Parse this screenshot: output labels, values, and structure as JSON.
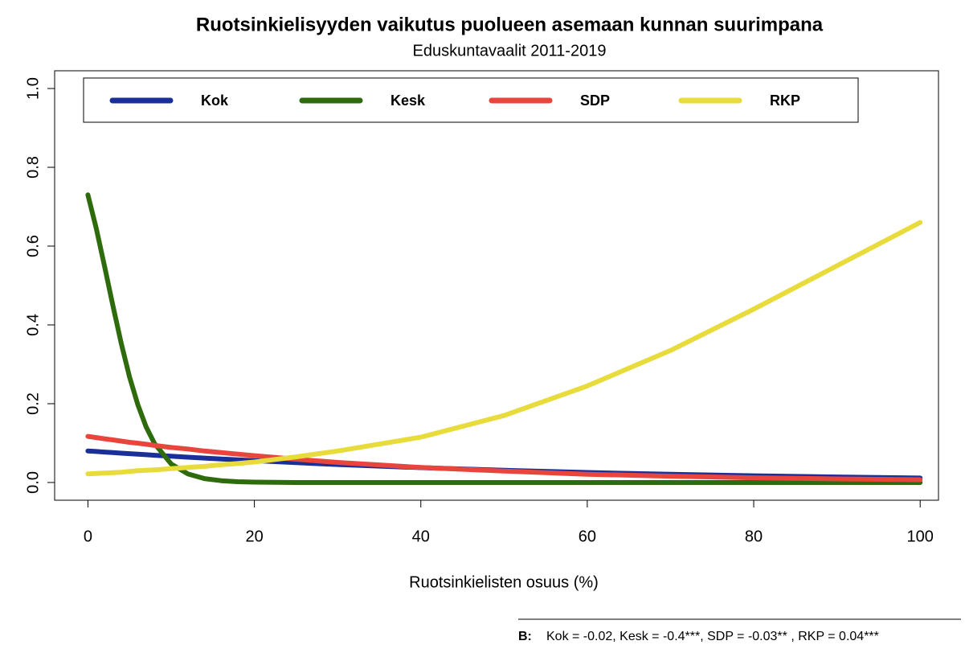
{
  "chart_data": {
    "type": "line",
    "title": "Ruotsinkielisyyden vaikutus puolueen asemaan kunnan suurimpana",
    "subtitle": "Eduskuntavaalit 2011-2019",
    "x_label": "Ruotsinkielisten osuus (%)",
    "x": [
      0,
      1,
      2,
      3,
      4,
      5,
      6,
      7,
      8,
      10,
      12,
      14,
      16,
      18,
      20,
      25,
      30,
      40,
      50,
      60,
      70,
      80,
      90,
      100
    ],
    "series": [
      {
        "name": "Kok",
        "color": "#1a2f9a",
        "values": [
          0.08,
          0.0786,
          0.0772,
          0.0758,
          0.0745,
          0.0731,
          0.0718,
          0.0705,
          0.0692,
          0.0667,
          0.0643,
          0.0619,
          0.0597,
          0.0575,
          0.0554,
          0.0503,
          0.0457,
          0.0377,
          0.031,
          0.0254,
          0.0208,
          0.017,
          0.0139,
          0.0113
        ]
      },
      {
        "name": "Kesk",
        "color": "#2e6b0c",
        "values": [
          0.73,
          0.645,
          0.549,
          0.449,
          0.353,
          0.268,
          0.197,
          0.141,
          0.099,
          0.047,
          0.022,
          0.01,
          0.0045,
          0.002,
          0.001,
          0,
          0,
          0,
          0,
          0,
          0,
          0,
          0,
          0
        ]
      },
      {
        "name": "SDP",
        "color": "#e8453c",
        "values": [
          0.117,
          0.114,
          0.111,
          0.108,
          0.105,
          0.102,
          0.0997,
          0.097,
          0.094,
          0.089,
          0.085,
          0.08,
          0.076,
          0.072,
          0.068,
          0.059,
          0.051,
          0.038,
          0.029,
          0.021,
          0.016,
          0.012,
          0.009,
          0.007
        ]
      },
      {
        "name": "RKP",
        "color": "#e8dc3c",
        "values": [
          0.022,
          0.023,
          0.024,
          0.025,
          0.026,
          0.028,
          0.03,
          0.031,
          0.032,
          0.035,
          0.038,
          0.041,
          0.045,
          0.048,
          0.052,
          0.065,
          0.08,
          0.115,
          0.17,
          0.245,
          0.335,
          0.44,
          0.55,
          0.66
        ]
      }
    ],
    "xlim": [
      -4,
      102.2
    ],
    "xticks": [
      0,
      20,
      40,
      60,
      80,
      100
    ],
    "ylim": [
      -0.045,
      1.045
    ],
    "yticks": [
      {
        "value": 0,
        "label": "0.0"
      },
      0.2,
      0.4,
      0.6,
      0.8,
      {
        "value": 1,
        "label": "1.0"
      }
    ],
    "legend": "top",
    "note_label": "B:",
    "note": "Kok = -0.02, Kesk = -0.4***, SDP = -0.03** , RKP = 0.04***"
  }
}
